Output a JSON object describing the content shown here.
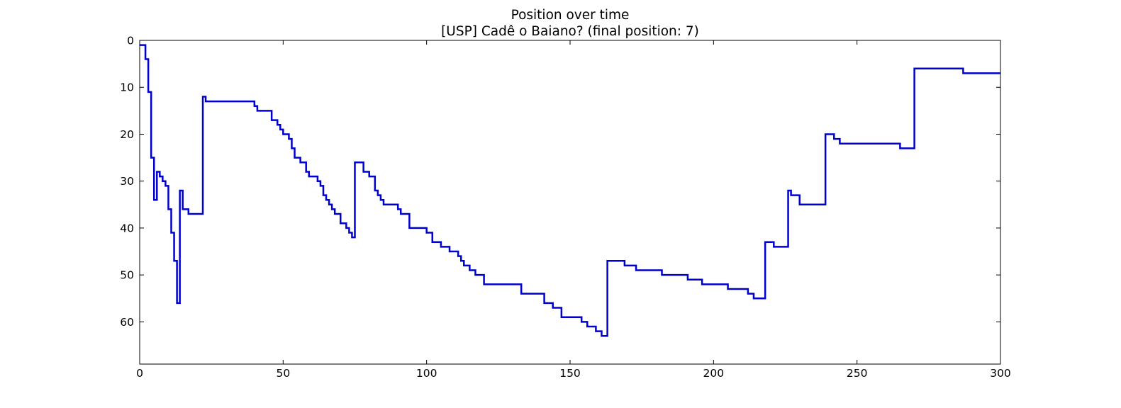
{
  "chart_data": {
    "type": "line",
    "title": "Position over time",
    "subtitle": "[USP] Cadê o Baiano? (final position: 7)",
    "xlabel": "",
    "ylabel": "",
    "xlim": [
      0,
      300
    ],
    "ylim": [
      69,
      0
    ],
    "y_inverted": true,
    "x_ticks": [
      0,
      50,
      100,
      150,
      200,
      250,
      300
    ],
    "y_ticks": [
      0,
      10,
      20,
      30,
      40,
      50,
      60
    ],
    "grid": false,
    "step": "post",
    "series": [
      {
        "color": "#0000cc",
        "x": [
          0,
          2,
          3,
          4,
          5,
          6,
          7,
          8,
          9,
          10,
          11,
          12,
          13,
          14,
          15,
          17,
          22,
          23,
          40,
          41,
          46,
          48,
          49,
          50,
          52,
          53,
          54,
          56,
          58,
          59,
          62,
          63,
          64,
          65,
          66,
          67,
          68,
          70,
          72,
          73,
          74,
          75,
          78,
          80,
          82,
          83,
          84,
          85,
          90,
          91,
          94,
          100,
          102,
          105,
          108,
          111,
          112,
          113,
          115,
          117,
          120,
          122,
          133,
          141,
          144,
          147,
          154,
          156,
          159,
          161,
          163,
          169,
          173,
          182,
          191,
          196,
          205,
          212,
          214,
          218,
          221,
          226,
          227,
          230,
          239,
          242,
          244,
          265,
          270,
          287,
          300
        ],
        "y": [
          1,
          4,
          11,
          25,
          34,
          28,
          29,
          30,
          31,
          36,
          41,
          47,
          56,
          32,
          36,
          37,
          12,
          13,
          14,
          15,
          17,
          18,
          19,
          20,
          21,
          23,
          25,
          26,
          28,
          29,
          30,
          31,
          33,
          34,
          35,
          36,
          37,
          39,
          40,
          41,
          42,
          26,
          28,
          29,
          32,
          33,
          34,
          35,
          36,
          37,
          40,
          41,
          43,
          44,
          45,
          46,
          47,
          48,
          49,
          50,
          52,
          52,
          54,
          56,
          57,
          59,
          60,
          61,
          62,
          63,
          47,
          48,
          49,
          50,
          51,
          52,
          53,
          54,
          55,
          43,
          44,
          32,
          33,
          35,
          20,
          21,
          22,
          23,
          6,
          7,
          7
        ]
      }
    ]
  }
}
